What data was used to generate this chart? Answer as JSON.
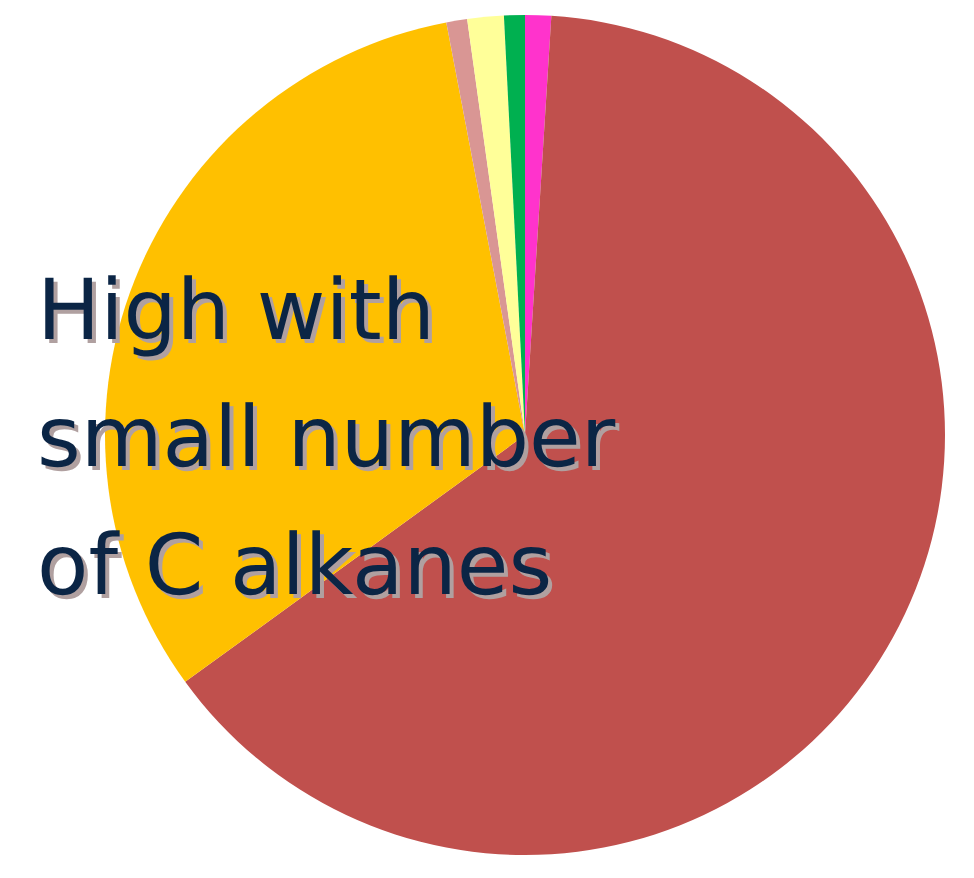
{
  "chart_data": {
    "type": "pie",
    "categories": [
      null,
      null,
      null,
      null,
      null,
      null
    ],
    "values": [
      1,
      64,
      32,
      0.8,
      1.4,
      0.8
    ],
    "colors": [
      "#ff33cc",
      "#c0504d",
      "#ffc000",
      "#d99694",
      "#ffff99",
      "#00b050"
    ],
    "annotations": [
      "High with\nsmall number\nof C alkanes"
    ]
  }
}
